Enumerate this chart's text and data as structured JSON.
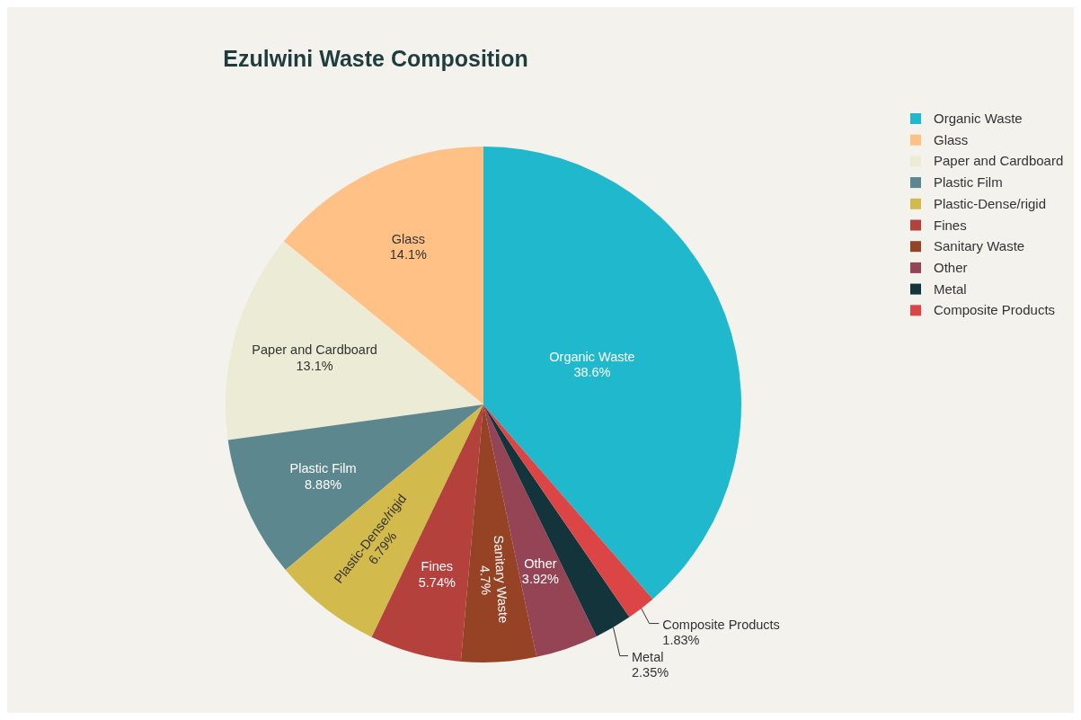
{
  "chart_data": {
    "type": "pie",
    "title": "Ezulwini Waste Composition",
    "categories": [
      "Organic Waste",
      "Glass",
      "Paper and Cardboard",
      "Plastic Film",
      "Plastic-Dense/rigid",
      "Fines",
      "Sanitary Waste",
      "Other",
      "Metal",
      "Composite Products"
    ],
    "values": [
      38.6,
      14.1,
      13.1,
      8.88,
      6.79,
      5.74,
      4.7,
      3.92,
      2.35,
      1.83
    ],
    "value_labels": [
      "38.6%",
      "14.1%",
      "13.1%",
      "8.88%",
      "6.79%",
      "5.74%",
      "4.7%",
      "3.92%",
      "2.35%",
      "1.83%"
    ],
    "colors": [
      "#1fb8cd",
      "#ffc185",
      "#eceBd5",
      "#5d878f",
      "#d2ba4c",
      "#b4413c",
      "#964325",
      "#944454",
      "#13343b",
      "#db4545"
    ],
    "legend": "top right"
  }
}
